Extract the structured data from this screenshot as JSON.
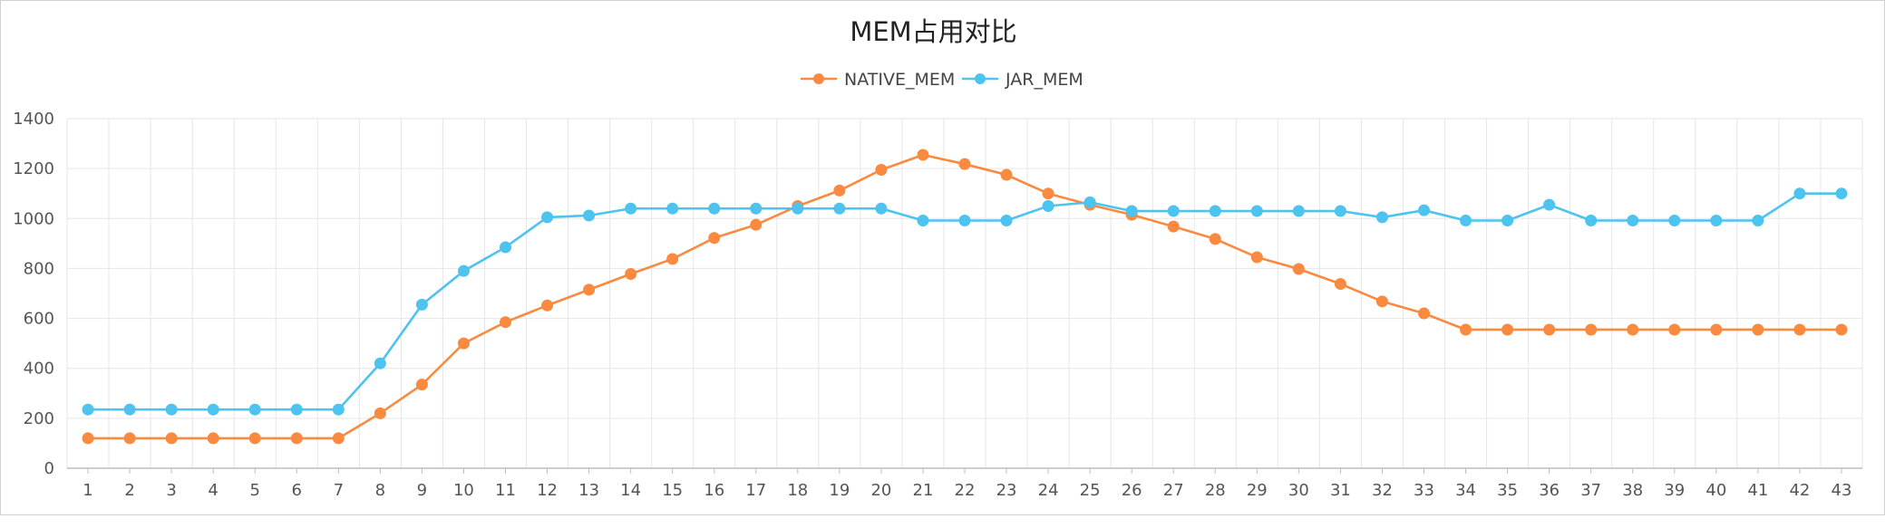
{
  "chart_data": {
    "type": "line",
    "title": "MEM占用对比",
    "xlabel": "",
    "ylabel": "",
    "categories": [
      "1",
      "2",
      "3",
      "4",
      "5",
      "6",
      "7",
      "8",
      "9",
      "10",
      "11",
      "12",
      "13",
      "14",
      "15",
      "16",
      "17",
      "18",
      "19",
      "20",
      "21",
      "22",
      "23",
      "24",
      "25",
      "26",
      "27",
      "28",
      "29",
      "30",
      "31",
      "32",
      "33",
      "34",
      "35",
      "36",
      "37",
      "38",
      "39",
      "40",
      "41",
      "42",
      "43"
    ],
    "ylim": [
      0,
      1400
    ],
    "yticks": [
      0,
      200,
      400,
      600,
      800,
      1000,
      1200,
      1400
    ],
    "grid": true,
    "legend_position": "top-center",
    "series": [
      {
        "name": "NATIVE_MEM",
        "color": "#f98a3f",
        "values": [
          120,
          120,
          120,
          120,
          120,
          120,
          120,
          220,
          335,
          500,
          585,
          652,
          715,
          778,
          838,
          922,
          975,
          1050,
          1112,
          1195,
          1255,
          1218,
          1175,
          1100,
          1055,
          1015,
          968,
          918,
          845,
          798,
          738,
          668,
          620,
          555,
          555,
          555,
          555,
          555,
          555,
          555,
          555,
          555,
          555
        ]
      },
      {
        "name": "JAR_MEM",
        "color": "#4dc3ef",
        "values": [
          235,
          235,
          235,
          235,
          235,
          235,
          235,
          420,
          655,
          790,
          885,
          1005,
          1012,
          1040,
          1040,
          1040,
          1040,
          1040,
          1040,
          1040,
          992,
          992,
          992,
          1050,
          1065,
          1030,
          1030,
          1030,
          1030,
          1030,
          1030,
          1005,
          1033,
          992,
          992,
          1055,
          992,
          992,
          992,
          992,
          992,
          1100,
          1100
        ]
      }
    ]
  }
}
